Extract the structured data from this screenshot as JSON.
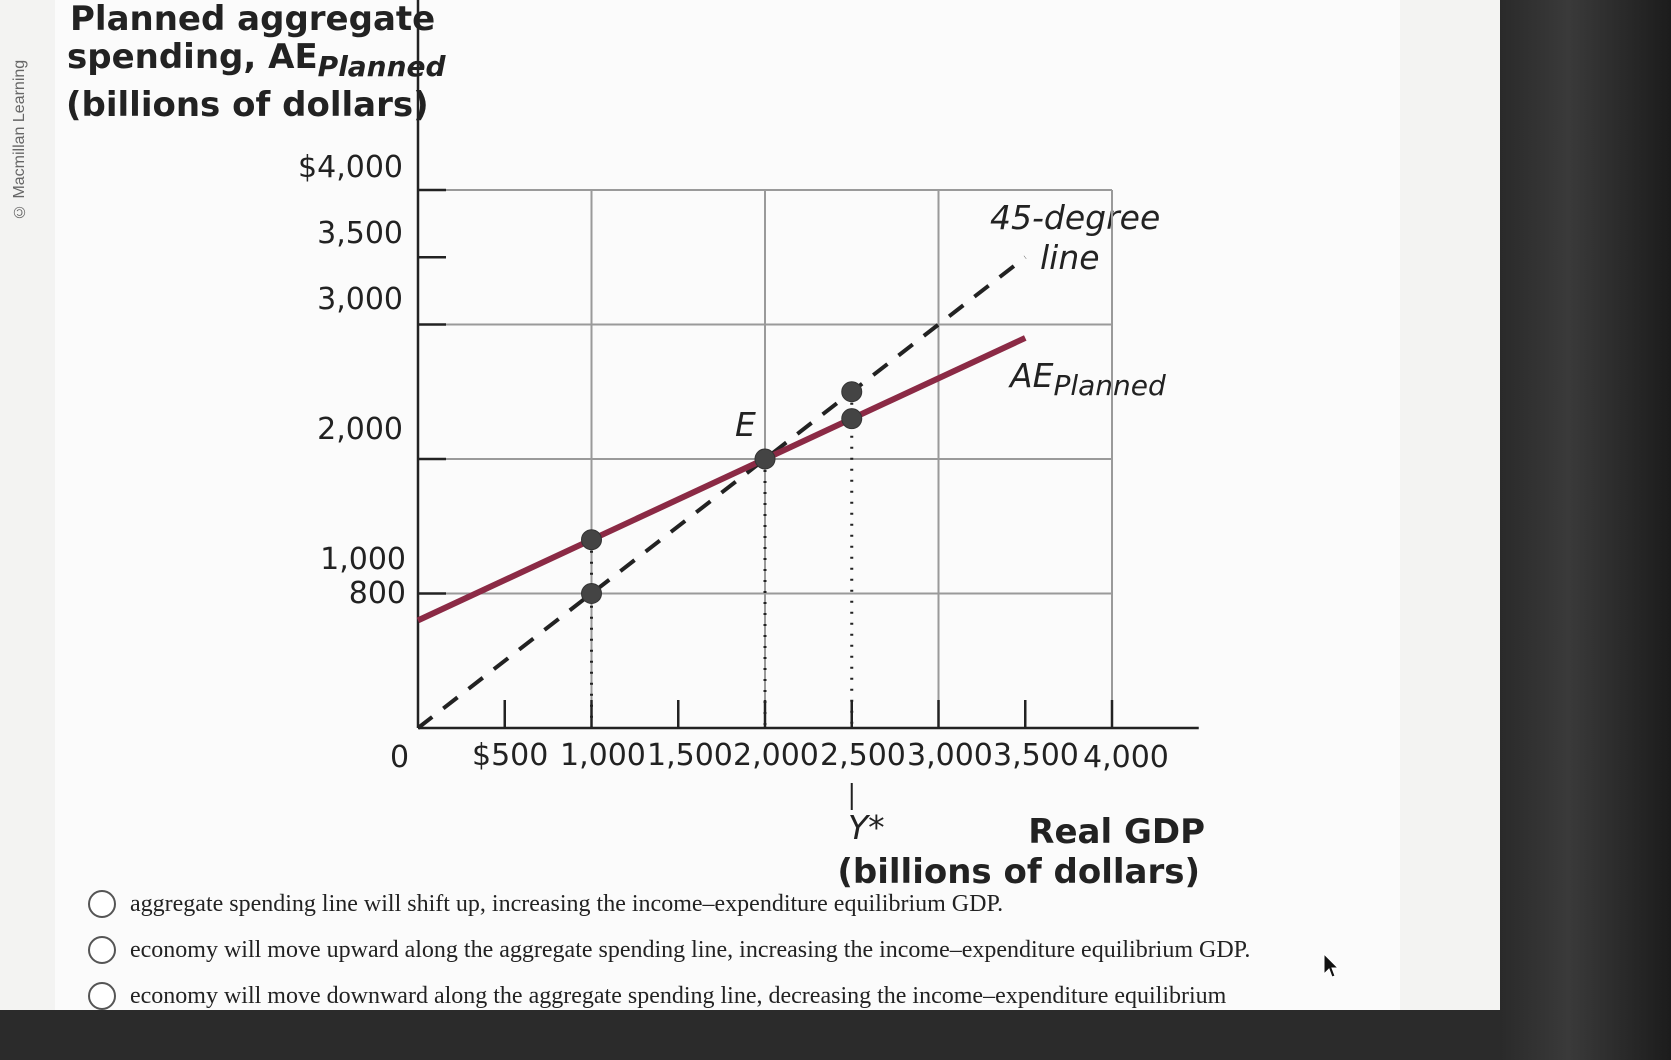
{
  "copyright": "© Macmillan Learning",
  "chart_data": {
    "type": "line",
    "ylabel_lines": [
      "Planned aggregate",
      "spending, AE",
      "(billions of dollars)"
    ],
    "ylabel_sub": "Planned",
    "xlabel_lines": [
      "Real GDP",
      "(billions of dollars)"
    ],
    "origin_label": "0",
    "y_ticks": [
      {
        "value": 4000,
        "label": "$4,000"
      },
      {
        "value": 3500,
        "label": "3,500"
      },
      {
        "value": 3000,
        "label": "3,000"
      },
      {
        "value": 2000,
        "label": "2,000"
      },
      {
        "value": 1000,
        "label": "1,000"
      },
      {
        "value": 800,
        "label": "800"
      }
    ],
    "x_ticks": [
      {
        "value": 500,
        "label": "$500"
      },
      {
        "value": 1000,
        "label": "1,000"
      },
      {
        "value": 1500,
        "label": "1,500"
      },
      {
        "value": 2000,
        "label": "2,000"
      },
      {
        "value": 2500,
        "label": "2,500"
      },
      {
        "value": 3000,
        "label": "3,000"
      },
      {
        "value": 3500,
        "label": "3,500"
      },
      {
        "value": 4000,
        "label": "4,000"
      }
    ],
    "xlim": [
      0,
      4000
    ],
    "ylim": [
      0,
      4000
    ],
    "grid": true,
    "series": [
      {
        "name": "AE",
        "name_sub": "Planned",
        "style": "solid",
        "color": "#8b2a45",
        "x": [
          0,
          3500
        ],
        "y": [
          800,
          2900
        ]
      },
      {
        "name": "45-degree line",
        "style": "dashed",
        "color": "#222222",
        "x": [
          0,
          3500
        ],
        "y": [
          0,
          3500
        ]
      }
    ],
    "points": [
      {
        "x": 1000,
        "y": 1400
      },
      {
        "x": 1000,
        "y": 1000
      },
      {
        "x": 2000,
        "y": 2000,
        "label": "E"
      },
      {
        "x": 2500,
        "y": 2300
      },
      {
        "x": 2500,
        "y": 2500
      }
    ],
    "annotations": [
      {
        "text": "Y*",
        "x": 2500
      }
    ]
  },
  "options": [
    "aggregate spending line will shift up, increasing the income–expenditure equilibrium GDP.",
    "economy will move upward along the aggregate spending line, increasing the income–expenditure equilibrium GDP.",
    "economy will move downward along the aggregate spending line, decreasing the income–expenditure equilibrium"
  ]
}
